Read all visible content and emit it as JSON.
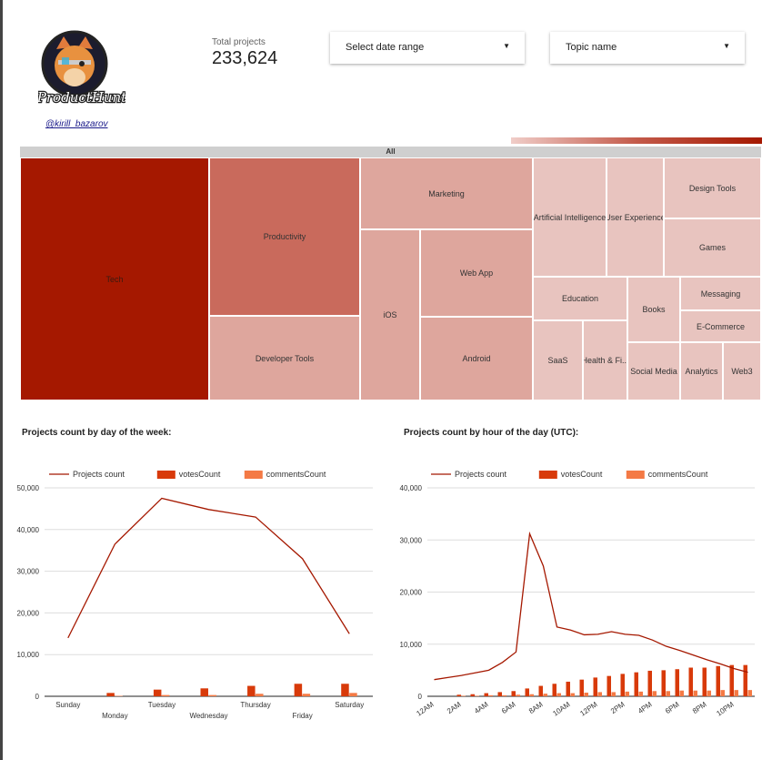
{
  "brand": {
    "logo_text": "ProductHunt",
    "handle": "@kirill_bazarov"
  },
  "kpi": {
    "label": "Total projects",
    "value": "233,624"
  },
  "filters": {
    "date_range_label": "Select date range",
    "topic_label": "Topic name"
  },
  "treemap": {
    "header": "All",
    "colors": {
      "high": "#a51800",
      "mid": "#c96a5c",
      "low": "#e8c9c4"
    },
    "cells": [
      {
        "label": "Tech",
        "level": "high"
      },
      {
        "label": "Productivity",
        "level": "mid"
      },
      {
        "label": "Developer Tools",
        "level": "low2"
      },
      {
        "label": "Marketing",
        "level": "low2"
      },
      {
        "label": "iOS",
        "level": "low2"
      },
      {
        "label": "Web App",
        "level": "low2"
      },
      {
        "label": "Android",
        "level": "low2"
      },
      {
        "label": "Artificial Intelligence",
        "level": "low"
      },
      {
        "label": "User Experience",
        "level": "low"
      },
      {
        "label": "Design Tools",
        "level": "low"
      },
      {
        "label": "Games",
        "level": "low"
      },
      {
        "label": "Education",
        "level": "low"
      },
      {
        "label": "Books",
        "level": "low"
      },
      {
        "label": "Messaging",
        "level": "low"
      },
      {
        "label": "E-Commerce",
        "level": "low"
      },
      {
        "label": "SaaS",
        "level": "low"
      },
      {
        "label": "Health & Fi...",
        "level": "low"
      },
      {
        "label": "Social Media",
        "level": "low"
      },
      {
        "label": "Analytics",
        "level": "low"
      },
      {
        "label": "Web3",
        "level": "low"
      }
    ]
  },
  "chart_titles": {
    "weekday": "Projects count by day of the week:",
    "hour": "Projects count by hour of the day (UTC):"
  },
  "colors": {
    "line": "#a51800",
    "votes": "#d83a0a",
    "comments": "#f47a45"
  },
  "chart_data": [
    {
      "type": "bar",
      "categories": [
        "Sunday",
        "Monday",
        "Tuesday",
        "Wednesday",
        "Thursday",
        "Friday",
        "Saturday"
      ],
      "ylim": [
        0,
        50000
      ],
      "yticks": [
        "0",
        "10,000",
        "20,000",
        "30,000",
        "40,000",
        "50,000"
      ],
      "legend": "top-left",
      "series": [
        {
          "name": "Projects count",
          "kind": "line",
          "values": [
            14000,
            36500,
            47500,
            44800,
            43000,
            33000,
            15000
          ]
        },
        {
          "name": "votesCount",
          "kind": "bar",
          "values": [
            0,
            800,
            1600,
            1900,
            2500,
            3000,
            3000
          ]
        },
        {
          "name": "commentsCount",
          "kind": "bar",
          "values": [
            0,
            100,
            300,
            300,
            600,
            600,
            800
          ]
        }
      ]
    },
    {
      "type": "bar",
      "categories": [
        "12AM",
        "1AM",
        "2AM",
        "3AM",
        "4AM",
        "5AM",
        "6AM",
        "7AM",
        "8AM",
        "9AM",
        "10AM",
        "11AM",
        "12PM",
        "1PM",
        "2PM",
        "3PM",
        "4PM",
        "5PM",
        "6PM",
        "7PM",
        "8PM",
        "9PM",
        "10PM",
        "11PM"
      ],
      "tick_labels": [
        "12AM",
        "2AM",
        "4AM",
        "6AM",
        "8AM",
        "10AM",
        "12PM",
        "2PM",
        "4PM",
        "6PM",
        "8PM",
        "10PM"
      ],
      "ylim": [
        0,
        40000
      ],
      "yticks": [
        "0",
        "10,000",
        "20,000",
        "30,000",
        "40,000"
      ],
      "legend": "top-left",
      "series": [
        {
          "name": "Projects count",
          "kind": "line",
          "values": [
            3200,
            3600,
            4000,
            4500,
            5000,
            6500,
            8500,
            31200,
            25000,
            13300,
            12700,
            11800,
            11900,
            12400,
            11900,
            11700,
            10800,
            9600,
            8800,
            7900,
            7000,
            6200,
            5300,
            4600
          ]
        },
        {
          "name": "votesCount",
          "kind": "bar",
          "values": [
            0,
            0,
            300,
            400,
            600,
            800,
            1000,
            1500,
            2000,
            2400,
            2800,
            3200,
            3600,
            3900,
            4300,
            4600,
            4900,
            5000,
            5200,
            5500,
            5500,
            5800,
            6000,
            6000
          ]
        },
        {
          "name": "commentsCount",
          "kind": "bar",
          "values": [
            0,
            0,
            100,
            100,
            200,
            200,
            300,
            400,
            500,
            600,
            600,
            700,
            800,
            800,
            900,
            900,
            1000,
            1000,
            1100,
            1100,
            1100,
            1200,
            1200,
            1200
          ]
        }
      ]
    }
  ]
}
